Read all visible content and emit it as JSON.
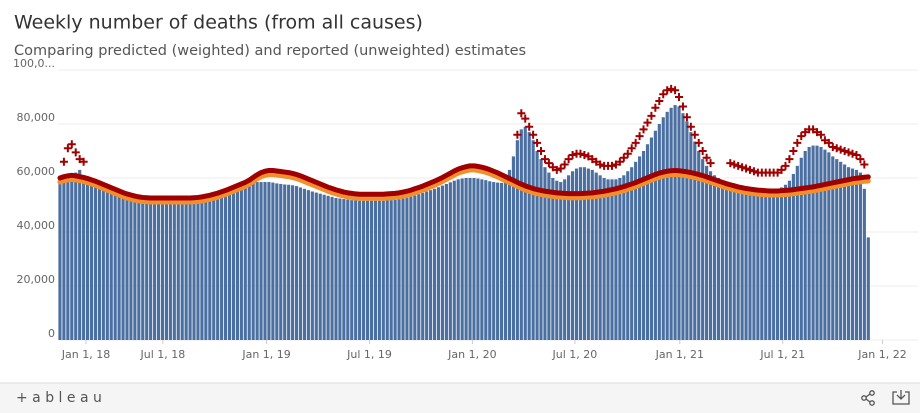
{
  "chart_data": {
    "type": "bar",
    "title": "Weekly number of deaths (from all causes)",
    "subtitle": "Comparing predicted (weighted) and reported (unweighted) estimates",
    "ylim": [
      0,
      100000
    ],
    "yticks": [
      0,
      {
        "value": 20000,
        "label": "20,000"
      },
      {
        "value": 40000,
        "label": "40,000"
      },
      {
        "value": 60000,
        "label": "60,000"
      },
      {
        "value": 80000,
        "label": "80,000"
      },
      {
        "value": 100000,
        "label": "100,0..."
      }
    ],
    "xlim": [
      -0.5,
      210
    ],
    "xticks": [
      {
        "value": 6.6,
        "label": "Jan 1, 18"
      },
      {
        "value": 26.1,
        "label": "Jul 1, 18"
      },
      {
        "value": 52.4,
        "label": "Jan 1, 19"
      },
      {
        "value": 78.5,
        "label": "Jul 1, 19"
      },
      {
        "value": 104.6,
        "label": "Jan 1, 20"
      },
      {
        "value": 130.6,
        "label": "Jul 1, 20"
      },
      {
        "value": 157.2,
        "label": "Jan 1, 21"
      },
      {
        "value": 183.3,
        "label": "Jul 1, 21"
      },
      {
        "value": 208.6,
        "label": "Jan 1, 22"
      }
    ],
    "grid": true,
    "series": [
      {
        "type": "bar",
        "color": "#4a6fa0",
        "values": [
          58000,
          58500,
          59000,
          60500,
          62000,
          63000,
          60000,
          59000,
          58500,
          57500,
          56700,
          56100,
          55500,
          54900,
          54300,
          53700,
          53100,
          52600,
          52200,
          51800,
          51500,
          51300,
          51200,
          51100,
          51100,
          51100,
          51100,
          51100,
          51100,
          51100,
          51100,
          51100,
          51100,
          51100,
          51200,
          51300,
          51500,
          51800,
          52100,
          52500,
          52900,
          53400,
          53900,
          54500,
          55100,
          55700,
          56300,
          56900,
          57700,
          58500,
          58500,
          58500,
          58500,
          58500,
          58300,
          58000,
          57800,
          57600,
          57500,
          57300,
          57000,
          56500,
          56000,
          55500,
          55000,
          54600,
          54200,
          53800,
          53400,
          53000,
          52600,
          52400,
          52200,
          52000,
          51800,
          51700,
          51600,
          51600,
          51600,
          51600,
          51600,
          51600,
          51600,
          51700,
          51800,
          51900,
          52100,
          52400,
          52700,
          53100,
          53500,
          54000,
          54500,
          55000,
          55500,
          56000,
          56600,
          57200,
          57800,
          58400,
          59000,
          59500,
          59800,
          60000,
          60000,
          60000,
          59800,
          59500,
          59200,
          58800,
          58500,
          58300,
          58200,
          60000,
          63000,
          68000,
          74000,
          78000,
          79000,
          77000,
          74000,
          70000,
          67000,
          64000,
          62000,
          60000,
          59000,
          58500,
          59500,
          61000,
          62500,
          63500,
          64000,
          64000,
          63500,
          63000,
          62000,
          61000,
          60000,
          59500,
          59500,
          59500,
          60000,
          61000,
          62500,
          64000,
          66000,
          68000,
          70000,
          72500,
          75000,
          77500,
          80000,
          82500,
          84500,
          86000,
          87000,
          86500,
          84000,
          81000,
          77000,
          73500,
          70000,
          67000,
          64500,
          62500,
          61000,
          60000,
          59000,
          58500,
          58000,
          57500,
          57000,
          56700,
          56500,
          56300,
          56200,
          56000,
          56000,
          56000,
          56000,
          56000,
          56000,
          56500,
          57500,
          59000,
          61500,
          64500,
          67500,
          70000,
          71500,
          72000,
          72000,
          71500,
          70500,
          69500,
          68000,
          67000,
          66000,
          65000,
          64000,
          63500,
          63000,
          62000,
          56000,
          38000
        ]
      },
      {
        "type": "line",
        "color": "#f28e2b",
        "values": [
          58500,
          59000,
          59300,
          59500,
          59300,
          59000,
          58700,
          58300,
          57800,
          57300,
          56700,
          56100,
          55500,
          54900,
          54300,
          53700,
          53100,
          52600,
          52200,
          51800,
          51500,
          51300,
          51200,
          51100,
          51100,
          51100,
          51100,
          51100,
          51100,
          51100,
          51100,
          51100,
          51100,
          51100,
          51200,
          51300,
          51500,
          51800,
          52100,
          52500,
          52900,
          53400,
          53900,
          54500,
          55100,
          55700,
          56300,
          56900,
          57700,
          58700,
          59700,
          60500,
          61000,
          61300,
          61300,
          61100,
          60900,
          60700,
          60500,
          60200,
          59800,
          59300,
          58700,
          58100,
          57500,
          56900,
          56300,
          55700,
          55100,
          54600,
          54100,
          53700,
          53300,
          53000,
          52800,
          52600,
          52500,
          52500,
          52500,
          52500,
          52500,
          52500,
          52500,
          52600,
          52700,
          52800,
          53000,
          53300,
          53600,
          54000,
          54500,
          55000,
          55500,
          56100,
          56700,
          57300,
          58000,
          58700,
          59500,
          60300,
          61100,
          61800,
          62300,
          62700,
          63000,
          63000,
          62800,
          62500,
          62100,
          61600,
          61000,
          60400,
          59700,
          59000,
          58300,
          57600,
          56900,
          56200,
          55600,
          55100,
          54600,
          54200,
          53900,
          53600,
          53400,
          53200,
          53000,
          52900,
          52800,
          52700,
          52700,
          52700,
          52700,
          52800,
          52900,
          53000,
          53200,
          53400,
          53600,
          53900,
          54200,
          54500,
          54900,
          55300,
          55800,
          56300,
          56800,
          57400,
          58000,
          58600,
          59200,
          59800,
          60300,
          60700,
          61000,
          61200,
          61300,
          61200,
          61000,
          60800,
          60500,
          60200,
          59800,
          59400,
          58900,
          58400,
          57900,
          57400,
          56900,
          56400,
          56000,
          55600,
          55200,
          54900,
          54600,
          54400,
          54200,
          54000,
          53900,
          53800,
          53700,
          53700,
          53700,
          53800,
          53900,
          54000,
          54200,
          54400,
          54600,
          54800,
          55000,
          55200,
          55500,
          55800,
          56100,
          56400,
          56700,
          57000,
          57300,
          57600,
          57900,
          58200,
          58400,
          58600,
          58800,
          58900
        ]
      },
      {
        "type": "line",
        "color": "#a00000",
        "values": [
          60000,
          60500,
          60800,
          61000,
          60800,
          60500,
          60200,
          59800,
          59300,
          58800,
          58200,
          57600,
          57000,
          56400,
          55800,
          55200,
          54600,
          54100,
          53700,
          53300,
          53000,
          52800,
          52700,
          52600,
          52600,
          52600,
          52600,
          52600,
          52600,
          52600,
          52600,
          52600,
          52600,
          52600,
          52700,
          52800,
          53000,
          53300,
          53600,
          54000,
          54400,
          54900,
          55400,
          56000,
          56600,
          57200,
          57800,
          58400,
          59200,
          60200,
          61200,
          62000,
          62500,
          62800,
          62800,
          62600,
          62400,
          62200,
          62000,
          61700,
          61300,
          60800,
          60200,
          59600,
          59000,
          58400,
          57800,
          57200,
          56600,
          56100,
          55600,
          55200,
          54800,
          54500,
          54300,
          54100,
          54000,
          54000,
          54000,
          54000,
          54000,
          54000,
          54000,
          54100,
          54200,
          54300,
          54500,
          54800,
          55100,
          55500,
          56000,
          56500,
          57000,
          57600,
          58200,
          58800,
          59500,
          60200,
          61000,
          61800,
          62600,
          63300,
          63800,
          64200,
          64500,
          64500,
          64300,
          64000,
          63600,
          63100,
          62500,
          61900,
          61200,
          60500,
          59800,
          59100,
          58400,
          57700,
          57100,
          56600,
          56100,
          55700,
          55400,
          55100,
          54900,
          54700,
          54500,
          54400,
          54300,
          54200,
          54200,
          54200,
          54200,
          54300,
          54400,
          54500,
          54700,
          54900,
          55100,
          55400,
          55700,
          56000,
          56400,
          56800,
          57300,
          57800,
          58300,
          58900,
          59500,
          60100,
          60700,
          61300,
          61800,
          62200,
          62500,
          62700,
          62800,
          62700,
          62500,
          62300,
          62000,
          61700,
          61300,
          60900,
          60400,
          59900,
          59400,
          58900,
          58400,
          57900,
          57500,
          57100,
          56700,
          56400,
          56100,
          55900,
          55700,
          55500,
          55400,
          55300,
          55200,
          55200,
          55200,
          55300,
          55400,
          55500,
          55700,
          55900,
          56100,
          56300,
          56500,
          56700,
          57000,
          57300,
          57600,
          57900,
          58200,
          58500,
          58800,
          59100,
          59400,
          59700,
          59900,
          60100,
          60300,
          60400
        ]
      },
      {
        "type": "scatter",
        "marker": "plus",
        "color": "#a00000",
        "values": [
          null,
          66000,
          71000,
          72500,
          69500,
          67000,
          66000,
          null,
          null,
          null,
          null,
          null,
          null,
          null,
          null,
          null,
          null,
          null,
          null,
          null,
          null,
          null,
          null,
          null,
          null,
          null,
          null,
          null,
          null,
          null,
          null,
          null,
          null,
          null,
          null,
          null,
          null,
          null,
          null,
          null,
          null,
          null,
          null,
          null,
          null,
          null,
          null,
          null,
          null,
          null,
          null,
          null,
          null,
          null,
          null,
          null,
          null,
          null,
          null,
          null,
          null,
          null,
          null,
          null,
          null,
          null,
          null,
          null,
          null,
          null,
          null,
          null,
          null,
          null,
          null,
          null,
          null,
          null,
          null,
          null,
          null,
          null,
          null,
          null,
          null,
          null,
          null,
          null,
          null,
          null,
          null,
          null,
          null,
          null,
          null,
          null,
          null,
          null,
          null,
          null,
          null,
          null,
          null,
          null,
          null,
          null,
          null,
          null,
          null,
          null,
          null,
          null,
          null,
          null,
          null,
          null,
          76000,
          84000,
          82000,
          79000,
          76000,
          73000,
          70000,
          67000,
          65500,
          64000,
          63000,
          63500,
          65000,
          67000,
          68500,
          69000,
          69000,
          68500,
          68000,
          67000,
          66000,
          65000,
          64500,
          64500,
          64500,
          65000,
          66000,
          67500,
          69000,
          71000,
          73000,
          75500,
          78000,
          80500,
          83000,
          86000,
          88500,
          91000,
          92500,
          93000,
          92500,
          90000,
          86500,
          82500,
          79000,
          76000,
          73000,
          70000,
          67500,
          65500,
          null,
          null,
          null,
          null,
          65500,
          65000,
          64500,
          64000,
          63500,
          63000,
          62500,
          62000,
          62000,
          62000,
          62000,
          62000,
          62000,
          63000,
          64500,
          67000,
          70000,
          73000,
          75500,
          77000,
          78000,
          78000,
          77000,
          76000,
          74000,
          73000,
          71500,
          71000,
          70500,
          70000,
          69500,
          69000,
          68500,
          67000,
          65000,
          null
        ]
      }
    ]
  },
  "toolbar": {
    "logo": "+ a b l e a u"
  }
}
